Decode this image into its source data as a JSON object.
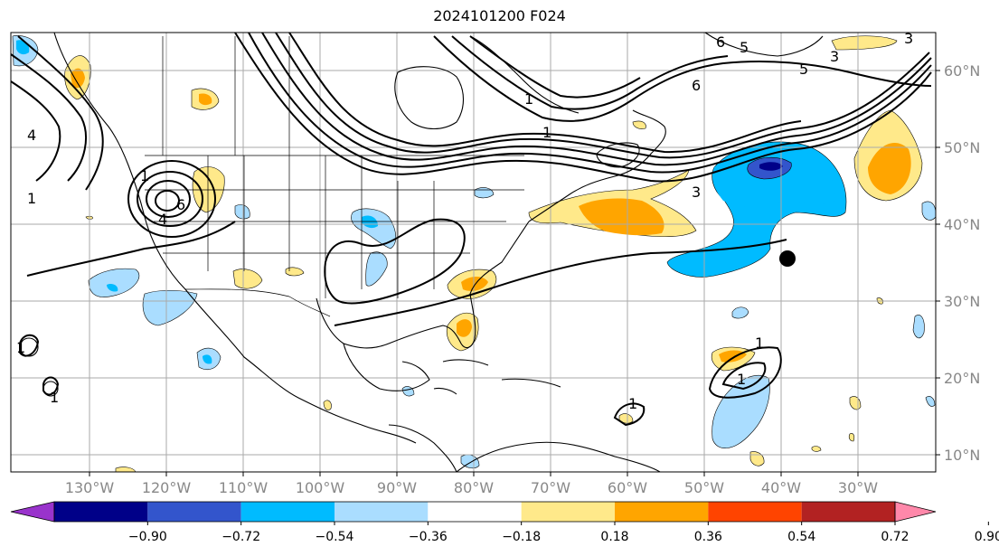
{
  "title": "2024101200 F024",
  "lon_labels": [
    "130°W",
    "120°W",
    "110°W",
    "100°W",
    "90°W",
    "80°W",
    "70°W",
    "60°W",
    "50°W",
    "40°W",
    "30°W"
  ],
  "lat_labels": [
    "60°N",
    "50°N",
    "40°N",
    "30°N",
    "20°N",
    "10°N"
  ],
  "colorbar": {
    "colors": [
      "#9933cc",
      "#000088",
      "#3355cc",
      "#00bbff",
      "#aaddff",
      "#ffffff",
      "#ffe98a",
      "#ffa500",
      "#ff4400",
      "#b22222",
      "#ff88aa"
    ],
    "labels": [
      "−0.90",
      "−0.72",
      "−0.54",
      "−0.36",
      "−0.18",
      "0.18",
      "0.36",
      "0.54",
      "0.72",
      "0.90"
    ]
  },
  "contour_labels": [
    "6",
    "5",
    "3",
    "6",
    "5",
    "3",
    "1",
    "1",
    "3",
    "4",
    "1",
    "6",
    "4",
    "1",
    "1",
    "1",
    "1",
    "1",
    "1"
  ],
  "marker": "storm-center-dot"
}
